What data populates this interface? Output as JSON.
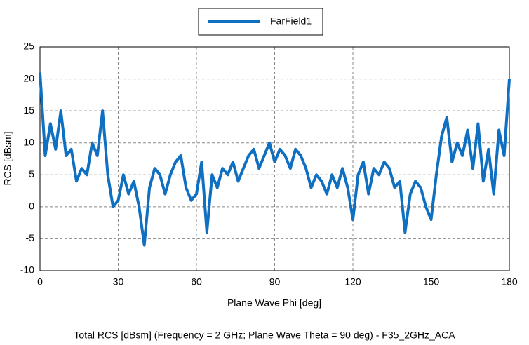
{
  "chart_data": {
    "type": "line",
    "title": "Total RCS [dBsm] (Frequency = 2 GHz; Plane Wave Theta = 90 deg) - F35_2GHz_ACA",
    "xlabel": "Plane Wave Phi [deg]",
    "ylabel": "RCS [dBsm]",
    "x": [
      0,
      2,
      4,
      6,
      8,
      10,
      12,
      14,
      16,
      18,
      20,
      22,
      24,
      26,
      28,
      30,
      32,
      34,
      36,
      38,
      40,
      42,
      44,
      46,
      48,
      50,
      52,
      54,
      56,
      58,
      60,
      62,
      64,
      66,
      68,
      70,
      72,
      74,
      76,
      78,
      80,
      82,
      84,
      86,
      88,
      90,
      92,
      94,
      96,
      98,
      100,
      102,
      104,
      106,
      108,
      110,
      112,
      114,
      116,
      118,
      120,
      122,
      124,
      126,
      128,
      130,
      132,
      134,
      136,
      138,
      140,
      142,
      144,
      146,
      148,
      150,
      152,
      154,
      156,
      158,
      160,
      162,
      164,
      166,
      168,
      170,
      172,
      174,
      176,
      178,
      180
    ],
    "series": [
      {
        "name": "FarField1",
        "color": "#0f6fc0",
        "values": [
          21,
          8,
          13,
          9,
          15,
          8,
          9,
          4,
          6,
          5,
          10,
          8,
          15,
          5,
          0,
          1,
          5,
          2,
          4,
          0,
          -6,
          3,
          6,
          5,
          2,
          5,
          7,
          8,
          3,
          1,
          2,
          7,
          -4,
          5,
          3,
          6,
          5,
          7,
          4,
          6,
          8,
          9,
          6,
          8,
          10,
          7,
          9,
          8,
          6,
          9,
          8,
          6,
          3,
          5,
          4,
          2,
          5,
          3,
          6,
          3,
          -2,
          5,
          7,
          2,
          6,
          5,
          7,
          6,
          3,
          4,
          -4,
          2,
          4,
          3,
          0,
          -2,
          5,
          11,
          14,
          7,
          10,
          8,
          12,
          6,
          13,
          4,
          9,
          2,
          12,
          8,
          20
        ]
      }
    ],
    "xlim": [
      0,
      180
    ],
    "xticks": [
      0,
      30,
      60,
      90,
      120,
      150,
      180
    ],
    "ylim": [
      -10,
      25
    ],
    "yticks": [
      -10,
      -5,
      0,
      5,
      10,
      15,
      20,
      25
    ],
    "grid": true,
    "legend": "top"
  }
}
